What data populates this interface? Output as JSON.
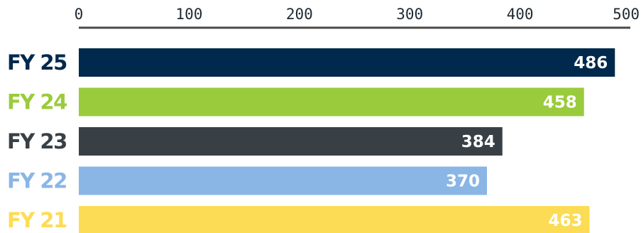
{
  "chart_data": {
    "type": "bar",
    "orientation": "horizontal",
    "categories": [
      "FY 25",
      "FY 24",
      "FY 23",
      "FY 22",
      "FY 21"
    ],
    "values": [
      486,
      458,
      384,
      370,
      463
    ],
    "colors": [
      "#00294d",
      "#9acb3c",
      "#394045",
      "#8ab6e6",
      "#fddc55"
    ],
    "label_colors": [
      "#00294d",
      "#9acb3c",
      "#394045",
      "#8ab6e6",
      "#fddc55"
    ],
    "value_label_color": "#ffffff",
    "axis_color": "#4a4a4a",
    "xlim": [
      0,
      500
    ],
    "xticks": [
      0,
      100,
      200,
      300,
      400,
      500
    ],
    "xtick_labels": [
      "0",
      "100",
      "200",
      "300",
      "400",
      "500"
    ],
    "axis_position": "top",
    "grid": false,
    "title": "",
    "xlabel": "",
    "ylabel": ""
  }
}
